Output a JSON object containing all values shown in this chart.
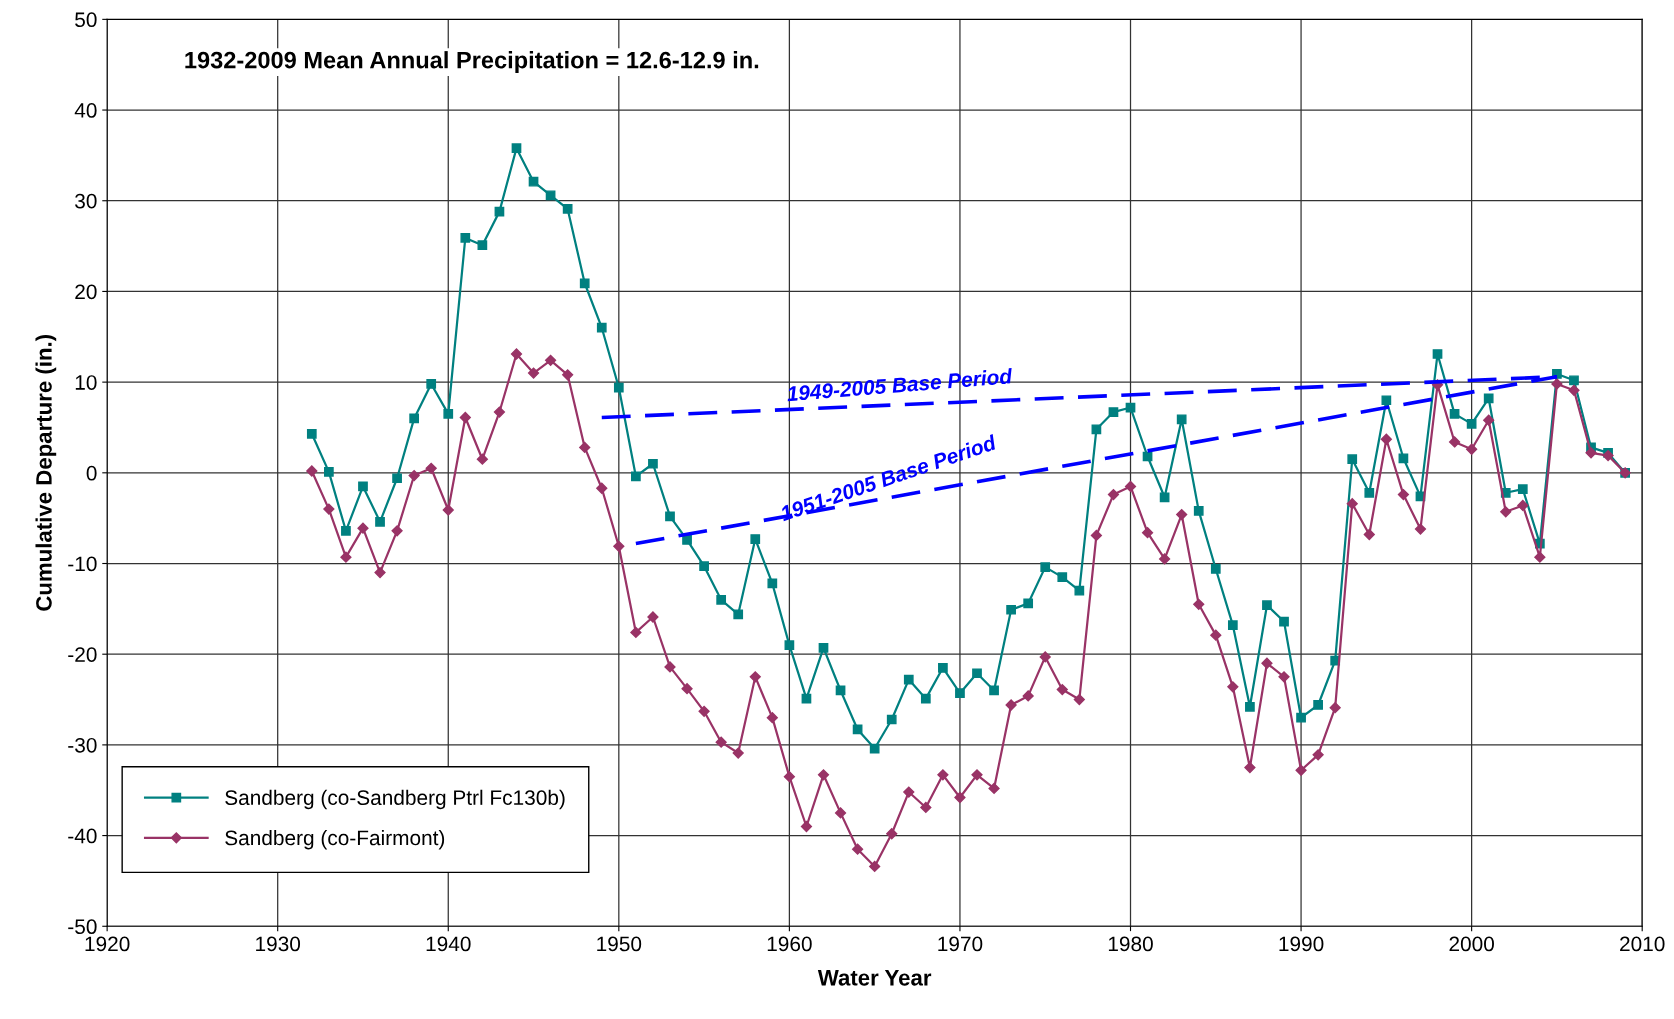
{
  "chart_data": {
    "type": "line",
    "xlabel": "Water Year",
    "ylabel": "Cumulative Departure (in.)",
    "xlim": [
      1920,
      2010
    ],
    "xticks": [
      1920,
      1930,
      1940,
      1950,
      1960,
      1970,
      1980,
      1990,
      2000,
      2010
    ],
    "ylim": [
      -50,
      50
    ],
    "yticks": [
      -50,
      -40,
      -30,
      -20,
      -10,
      0,
      10,
      20,
      30,
      40,
      50
    ],
    "grid": true,
    "legend": "bottom left",
    "annotations": [
      "1932-2009 Mean Annual Precipitation = 12.6-12.9 in.",
      {
        "text": "1949-2005 Base Period",
        "x": 1966.5,
        "y": 7.5
      },
      {
        "text": "1951-2005 Base Period",
        "x": 1966,
        "y": -2.7
      }
    ],
    "x": [
      1932,
      1933,
      1934,
      1935,
      1936,
      1937,
      1938,
      1939,
      1940,
      1941,
      1942,
      1943,
      1944,
      1945,
      1946,
      1947,
      1948,
      1949,
      1950,
      1951,
      1952,
      1953,
      1954,
      1955,
      1956,
      1957,
      1958,
      1959,
      1960,
      1961,
      1962,
      1963,
      1964,
      1965,
      1966,
      1967,
      1968,
      1969,
      1970,
      1971,
      1972,
      1973,
      1974,
      1975,
      1976,
      1977,
      1978,
      1979,
      1980,
      1981,
      1982,
      1983,
      1984,
      1985,
      1986,
      1987,
      1988,
      1989,
      1990,
      1991,
      1992,
      1993,
      1994,
      1995,
      1996,
      1997,
      1998,
      1999,
      2000,
      2001,
      2002,
      2003,
      2004,
      2005,
      2006,
      2007,
      2008,
      2009
    ],
    "series": [
      {
        "name": "Sandberg (co-Sandberg Ptrl Fc130b)",
        "color": "#008080",
        "marker": "square",
        "line_style": "solid",
        "values": [
          4.3,
          0.1,
          -6.4,
          -1.5,
          -5.4,
          -0.6,
          6.0,
          9.8,
          6.5,
          25.9,
          25.1,
          28.8,
          35.8,
          32.1,
          30.6,
          29.1,
          20.9,
          16.0,
          9.4,
          -0.4,
          1.0,
          -4.8,
          -7.4,
          -10.3,
          -14.0,
          -15.6,
          -7.3,
          -12.2,
          -19.0,
          -24.9,
          -19.3,
          -24.0,
          -28.3,
          -30.4,
          -27.2,
          -22.8,
          -24.9,
          -21.5,
          -24.3,
          -22.1,
          -24.0,
          -15.1,
          -14.4,
          -10.4,
          -11.5,
          -13.0,
          4.8,
          6.7,
          7.2,
          1.8,
          -2.7,
          5.9,
          -4.2,
          -10.6,
          -16.8,
          -25.8,
          -14.6,
          -16.4,
          -27.0,
          -25.6,
          -20.7,
          1.5,
          -2.2,
          8.0,
          1.6,
          -2.6,
          13.1,
          6.5,
          5.4,
          8.2,
          -2.2,
          -1.8,
          -7.8,
          10.9,
          10.2,
          2.8,
          2.2,
          0.0
        ]
      },
      {
        "name": "Sandberg (co-Fairmont)",
        "color": "#993366",
        "marker": "diamond",
        "line_style": "solid",
        "values": [
          0.2,
          -4.0,
          -9.3,
          -6.1,
          -11.0,
          -6.4,
          -0.3,
          0.5,
          -4.1,
          6.1,
          1.5,
          6.7,
          13.1,
          11.0,
          12.4,
          10.8,
          2.8,
          -1.7,
          -8.1,
          -17.6,
          -15.9,
          -21.4,
          -23.8,
          -26.3,
          -29.7,
          -30.9,
          -22.5,
          -27.0,
          -33.5,
          -39.0,
          -33.3,
          -37.5,
          -41.5,
          -43.4,
          -39.8,
          -35.2,
          -36.9,
          -33.3,
          -35.8,
          -33.3,
          -34.8,
          -25.6,
          -24.6,
          -20.3,
          -23.9,
          -25.0,
          -6.9,
          -2.4,
          -1.5,
          -6.6,
          -9.5,
          -4.6,
          -14.5,
          -17.9,
          -23.6,
          -32.5,
          -21.0,
          -22.5,
          -32.8,
          -31.1,
          -25.9,
          -3.4,
          -6.8,
          3.7,
          -2.4,
          -6.2,
          9.7,
          3.4,
          2.6,
          5.8,
          -4.3,
          -3.6,
          -9.3,
          9.8,
          9.1,
          2.2,
          1.9,
          0.0
        ]
      },
      {
        "color": "#0000ff",
        "marker": "none",
        "line_style": "dashed",
        "x": [
          1949,
          2005
        ],
        "values": [
          6.1,
          10.6
        ]
      },
      {
        "color": "#0000ff",
        "marker": "none",
        "line_style": "dashed",
        "x": [
          1951,
          2005
        ],
        "values": [
          -7.8,
          10.6
        ]
      }
    ]
  }
}
